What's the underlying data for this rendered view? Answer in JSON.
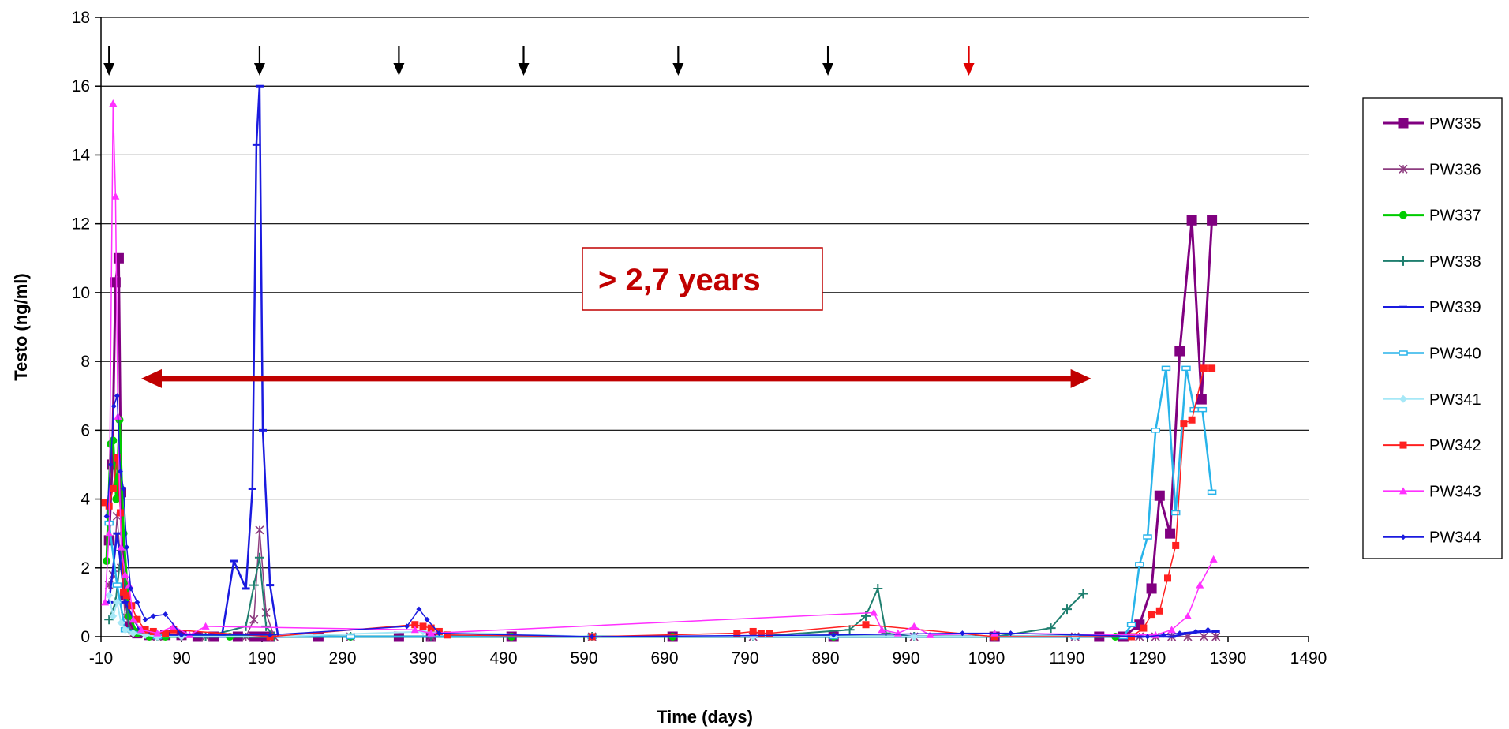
{
  "chart_data": {
    "type": "line",
    "xlabel": "Time (days)",
    "ylabel": "Testo (ng/ml)",
    "xlim": [
      -10,
      1490
    ],
    "ylim": [
      0,
      18
    ],
    "x_ticks": [
      -10,
      90,
      190,
      290,
      390,
      490,
      590,
      690,
      790,
      890,
      990,
      1090,
      1190,
      1290,
      1390,
      1490
    ],
    "y_ticks": [
      0,
      2,
      4,
      6,
      8,
      10,
      12,
      14,
      16,
      18
    ],
    "grid": "horizontal",
    "legend_position": "right",
    "annotation_box_text": "> 2,7 years",
    "double_arrow": {
      "x_from": 40,
      "x_to": 1220,
      "y": 7.5,
      "color": "#c00000"
    },
    "injection_arrows": [
      {
        "x": 0,
        "color": "#000000"
      },
      {
        "x": 187,
        "color": "#000000"
      },
      {
        "x": 360,
        "color": "#000000"
      },
      {
        "x": 515,
        "color": "#000000"
      },
      {
        "x": 707,
        "color": "#000000"
      },
      {
        "x": 893,
        "color": "#000000"
      },
      {
        "x": 1068,
        "color": "#e00000"
      }
    ],
    "series": [
      {
        "name": "PW335",
        "color": "#800080",
        "marker": "square",
        "marker_size": 13,
        "line_width": 3,
        "x": [
          0,
          4,
          8,
          12,
          15,
          20,
          25,
          35,
          50,
          70,
          90,
          110,
          130,
          160,
          180,
          190,
          200,
          260,
          360,
          400,
          500,
          700,
          900,
          1100,
          1230,
          1260,
          1280,
          1295,
          1305,
          1318,
          1330,
          1345,
          1357,
          1370
        ],
        "y": [
          2.8,
          5.0,
          10.3,
          11.0,
          4.2,
          1.2,
          0.3,
          0.1,
          0.05,
          0.05,
          0.05,
          0,
          0,
          0,
          0,
          0,
          0,
          0,
          0,
          0,
          0,
          0,
          0,
          0,
          0,
          0,
          0.35,
          1.4,
          4.1,
          3.0,
          8.3,
          12.1,
          6.9,
          12.1
        ]
      },
      {
        "name": "PW336",
        "color": "#8e3d80",
        "marker": "star",
        "marker_size": 10,
        "line_width": 1.5,
        "x": [
          0,
          5,
          10,
          15,
          20,
          30,
          60,
          120,
          170,
          180,
          187,
          195,
          205,
          300,
          400,
          600,
          800,
          1000,
          1200,
          1280,
          1300,
          1320,
          1340,
          1360,
          1375
        ],
        "y": [
          1.5,
          1.8,
          3.5,
          2.0,
          0.6,
          0.1,
          0,
          0,
          0,
          0.5,
          3.1,
          0.7,
          0,
          0,
          0,
          0,
          0,
          0,
          0,
          0,
          0,
          0,
          0,
          0,
          0
        ]
      },
      {
        "name": "PW337",
        "color": "#00cc00",
        "marker": "circle",
        "marker_size": 10,
        "line_width": 3,
        "x": [
          -3,
          2,
          5,
          9,
          13,
          18,
          25,
          35,
          50,
          70,
          150,
          300,
          500,
          700,
          900,
          1100,
          1250
        ],
        "y": [
          2.2,
          5.6,
          5.7,
          4.0,
          6.3,
          3.0,
          0.6,
          0.1,
          0,
          0,
          0,
          0,
          0,
          0,
          0,
          0,
          0
        ]
      },
      {
        "name": "PW338",
        "color": "#1f7f6f",
        "marker": "plus",
        "marker_size": 12,
        "line_width": 2,
        "x": [
          0,
          8,
          15,
          25,
          60,
          120,
          170,
          180,
          187,
          195,
          205,
          300,
          400,
          600,
          800,
          920,
          940,
          955,
          965,
          1000,
          1100,
          1170,
          1190,
          1210
        ],
        "y": [
          0.5,
          1.0,
          2.5,
          0.2,
          0,
          0,
          0.3,
          1.5,
          2.3,
          0.3,
          0,
          0,
          0,
          0,
          0,
          0.2,
          0.6,
          1.4,
          0.1,
          0,
          0,
          0.25,
          0.8,
          1.25
        ]
      },
      {
        "name": "PW339",
        "color": "#1a1adf",
        "marker": "dash",
        "marker_size": 10,
        "line_width": 2.5,
        "x": [
          0,
          10,
          20,
          40,
          100,
          140,
          155,
          170,
          178,
          183,
          187,
          191,
          200,
          210,
          300,
          500,
          800,
          1000,
          1280,
          1300,
          1320,
          1340,
          1360,
          1375
        ],
        "y": [
          1.0,
          3.0,
          1.0,
          0.1,
          0,
          0,
          2.2,
          1.4,
          4.3,
          14.3,
          16.0,
          6.0,
          1.5,
          0,
          0,
          0,
          0,
          0,
          0,
          0,
          0,
          0.1,
          0.15,
          0.15
        ]
      },
      {
        "name": "PW340",
        "color": "#28b4ea",
        "marker": "rect-open",
        "marker_size": 10,
        "line_width": 2.5,
        "x": [
          0,
          10,
          20,
          60,
          300,
          600,
          900,
          1200,
          1260,
          1270,
          1280,
          1290,
          1300,
          1313,
          1325,
          1338,
          1348,
          1358,
          1370
        ],
        "y": [
          3.3,
          1.5,
          0.2,
          0,
          0,
          0,
          0,
          0,
          0,
          0.35,
          2.1,
          2.9,
          6.0,
          7.8,
          3.6,
          7.8,
          6.6,
          6.6,
          4.2
        ]
      },
      {
        "name": "PW341",
        "color": "#a6e8f7",
        "marker": "diamond",
        "marker_size": 10,
        "line_width": 2,
        "x": [
          0,
          5,
          10,
          15,
          20,
          30,
          45,
          60,
          90,
          200,
          390,
          600,
          800,
          1000,
          1200,
          1270
        ],
        "y": [
          1.2,
          0.6,
          1.0,
          0.4,
          0.2,
          0.1,
          0.05,
          0,
          0,
          0,
          0.15,
          0,
          0,
          0,
          0,
          0
        ]
      },
      {
        "name": "PW342",
        "color": "#ff2020",
        "marker": "square",
        "marker_size": 9,
        "line_width": 1.5,
        "x": [
          -5,
          0,
          5,
          10,
          14,
          18,
          22,
          28,
          35,
          45,
          55,
          70,
          80,
          200,
          380,
          390,
          400,
          410,
          420,
          600,
          780,
          800,
          810,
          820,
          940,
          1100,
          1270,
          1285,
          1295,
          1305,
          1315,
          1325,
          1335,
          1345,
          1360,
          1370
        ],
        "y": [
          3.9,
          3.8,
          4.3,
          5.2,
          3.6,
          1.3,
          1.2,
          0.9,
          0.5,
          0.2,
          0.15,
          0.1,
          0.2,
          0,
          0.35,
          0.3,
          0.25,
          0.15,
          0.05,
          0,
          0.1,
          0.15,
          0.1,
          0.1,
          0.35,
          0,
          0,
          0.25,
          0.65,
          0.75,
          1.7,
          2.65,
          6.2,
          6.3,
          7.8,
          7.8
        ]
      },
      {
        "name": "PW343",
        "color": "#ff30ff",
        "marker": "triangle",
        "marker_size": 10,
        "line_width": 1.5,
        "x": [
          -5,
          0,
          5,
          8,
          11,
          15,
          20,
          25,
          30,
          40,
          60,
          80,
          100,
          120,
          380,
          400,
          950,
          960,
          980,
          1000,
          1020,
          1100,
          1300,
          1320,
          1340,
          1355,
          1372
        ],
        "y": [
          1.0,
          3.0,
          15.5,
          12.8,
          6.4,
          2.6,
          1.8,
          1.5,
          0.5,
          0.2,
          0.1,
          0.3,
          0.05,
          0.3,
          0.2,
          0.1,
          0.7,
          0.2,
          0.1,
          0.3,
          0.05,
          0.1,
          0.05,
          0.2,
          0.6,
          1.5,
          2.25
        ]
      },
      {
        "name": "PW344",
        "color": "#1a1adf",
        "marker": "diamond-small",
        "marker_size": 7,
        "line_width": 1.5,
        "x": [
          -3,
          2,
          6,
          10,
          14,
          18,
          22,
          27,
          35,
          45,
          55,
          70,
          90,
          200,
          370,
          385,
          395,
          410,
          600,
          900,
          1060,
          1120,
          1290,
          1310,
          1330,
          1350,
          1365
        ],
        "y": [
          3.5,
          5.0,
          6.7,
          7.0,
          4.8,
          4.3,
          2.6,
          1.4,
          1.0,
          0.5,
          0.6,
          0.65,
          0.05,
          0.05,
          0.3,
          0.8,
          0.5,
          0.1,
          0,
          0.05,
          0.1,
          0.1,
          0,
          0.05,
          0.1,
          0.15,
          0.2
        ]
      }
    ]
  }
}
